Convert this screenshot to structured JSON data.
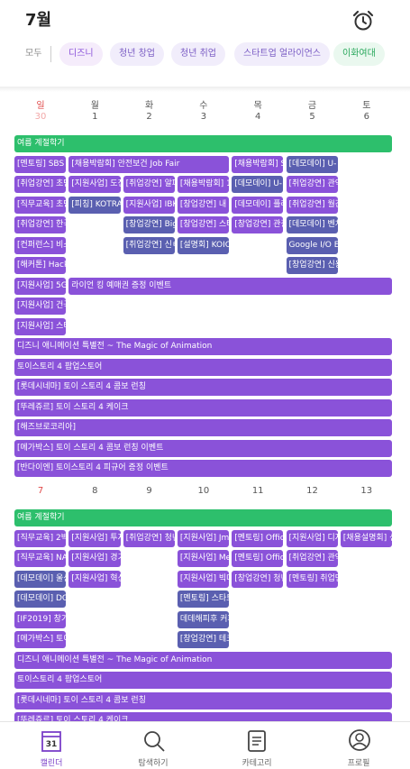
{
  "header": {
    "title": "7월"
  },
  "filters": [
    {
      "text": "모두",
      "color": "#888888",
      "bg": "#ffffff"
    },
    {
      "text": "디즈니",
      "color": "#8a52d9",
      "bg": "#f5ecfb"
    },
    {
      "text": "청년 창업",
      "color": "#7a5cc4",
      "bg": "#f1edfb"
    },
    {
      "text": "청년 취업",
      "color": "#7a5cc4",
      "bg": "#f1edfb"
    },
    {
      "text": "스타트업 얼라이언스",
      "color": "#7a5cc4",
      "bg": "#f1edfb"
    },
    {
      "text": "이화여대",
      "color": "#2aa85d",
      "bg": "#eaf8ef"
    }
  ],
  "weekdays": [
    "일",
    "월",
    "화",
    "수",
    "목",
    "금",
    "토"
  ],
  "weeks": [
    {
      "dates": [
        "30",
        "1",
        "2",
        "3",
        "4",
        "5",
        "6"
      ],
      "rows": [
        [
          {
            "text": "여름 계절학기",
            "day": 0,
            "days": 7,
            "color": "#2dbf6c"
          }
        ],
        [
          {
            "text": "[멘토링] SBS 1",
            "day": 0,
            "color": "#8a52d9"
          },
          {
            "text": "[채용박람회] 안전보건 Job Fair",
            "day": 1,
            "days": 3,
            "color": "#8a52d9"
          },
          {
            "text": "[채용박람회] S",
            "day": 4,
            "color": "#8a52d9"
          },
          {
            "text": "[데모데이] U-",
            "day": 5,
            "color": "#5a5fb0"
          }
        ],
        [
          {
            "text": "[취업강연] 초단",
            "day": 0,
            "color": "#8a52d9"
          },
          {
            "text": "[지원사업] 도전",
            "day": 1,
            "color": "#8a52d9"
          },
          {
            "text": "[취업강연] 알파",
            "day": 2,
            "color": "#8a52d9"
          },
          {
            "text": "[채용박람회] 1",
            "day": 3,
            "color": "#8a52d9"
          },
          {
            "text": "[데모데이] U-",
            "day": 4,
            "color": "#5a5fb0"
          },
          {
            "text": "[취업강연] 관악",
            "day": 5,
            "color": "#8a52d9"
          }
        ],
        [
          {
            "text": "[직무교육] 초민",
            "day": 0,
            "color": "#8a52d9"
          },
          {
            "text": "[피칭] KOTRA",
            "day": 1,
            "color": "#5a5fb0"
          },
          {
            "text": "[지원사업] IBK",
            "day": 2,
            "color": "#8a52d9"
          },
          {
            "text": "[창업강연] 내",
            "day": 3,
            "color": "#8a52d9"
          },
          {
            "text": "[데모데이] 플라",
            "day": 4,
            "color": "#8a52d9"
          },
          {
            "text": "[취업강연] 월간",
            "day": 5,
            "color": "#8a52d9"
          }
        ],
        [
          {
            "text": "[취업강연] 한국",
            "day": 0,
            "color": "#8a52d9"
          },
          {
            "text": "[창업강연] Big",
            "day": 2,
            "color": "#5a5fb0"
          },
          {
            "text": "[창업강연] 스타",
            "day": 3,
            "color": "#8a52d9"
          },
          {
            "text": "[창업강연] 관광",
            "day": 4,
            "color": "#8a52d9"
          },
          {
            "text": "[데모데이] 벤처",
            "day": 5,
            "color": "#5a5fb0"
          }
        ],
        [
          {
            "text": "[컨퍼런스] 비스",
            "day": 0,
            "color": "#8a52d9"
          },
          {
            "text": "[취업강연] 신ㅌ",
            "day": 2,
            "color": "#5a5fb0"
          },
          {
            "text": "[설명회] KOIC",
            "day": 3,
            "color": "#5a5fb0"
          },
          {
            "text": "Google I/O Ex",
            "day": 5,
            "color": "#5a5fb0"
          }
        ],
        [
          {
            "text": "[해커톤] Hack",
            "day": 0,
            "color": "#8a52d9"
          },
          {
            "text": "[창업강연] 신용",
            "day": 5,
            "color": "#5a5fb0"
          }
        ],
        [
          {
            "text": "[지원사업] 5G",
            "day": 0,
            "color": "#8a52d9"
          },
          {
            "text": "라이언 킹 예매권 증정 이벤트",
            "day": 1,
            "days": 6,
            "color": "#8a52d9"
          }
        ],
        [
          {
            "text": "[지원사업] 건국",
            "day": 0,
            "color": "#8a52d9"
          }
        ],
        [
          {
            "text": "[지원사업] 스타",
            "day": 0,
            "color": "#8a52d9"
          }
        ],
        [
          {
            "text": "디즈니 애니메이션 특별전 ~ The Magic of Animation",
            "day": 0,
            "days": 7,
            "color": "#8a52d9"
          }
        ],
        [
          {
            "text": "토이스토리 4 팝업스토어",
            "day": 0,
            "days": 7,
            "color": "#8a52d9"
          }
        ],
        [
          {
            "text": "[롯데시네마] 토이 스토리 4 콤보 런칭",
            "day": 0,
            "days": 7,
            "color": "#8a52d9"
          }
        ],
        [
          {
            "text": "[뚜레쥬르] 토이 스토리 4 케이크",
            "day": 0,
            "days": 7,
            "color": "#8a52d9"
          }
        ],
        [
          {
            "text": "[해즈브로코리아]",
            "day": 0,
            "days": 7,
            "color": "#8a52d9"
          }
        ],
        [
          {
            "text": "[메가박스] 토이 스토리 4 콤보 런칭 이벤트",
            "day": 0,
            "days": 7,
            "color": "#8a52d9"
          }
        ],
        [
          {
            "text": "[반다이엔] 토이스토리 4 피규어 증정 이벤트",
            "day": 0,
            "days": 7,
            "color": "#8a52d9"
          }
        ]
      ]
    },
    {
      "dates": [
        "7",
        "8",
        "9",
        "10",
        "11",
        "12",
        "13"
      ],
      "rows": [
        [
          {
            "text": "여름 계절학기",
            "day": 0,
            "days": 7,
            "color": "#2dbf6c"
          }
        ],
        [
          {
            "text": "[직무교육] 2박",
            "day": 0,
            "color": "#8a52d9"
          },
          {
            "text": "[지원사업] 투자",
            "day": 1,
            "color": "#8a52d9"
          },
          {
            "text": "[취업강연] 청년",
            "day": 2,
            "color": "#8a52d9"
          },
          {
            "text": "[지원사업] Jmi",
            "day": 3,
            "color": "#8a52d9"
          },
          {
            "text": "[멘토링] Offic",
            "day": 4,
            "color": "#8a52d9"
          },
          {
            "text": "[지원사업] 디자",
            "day": 5,
            "color": "#8a52d9"
          },
          {
            "text": "[채용설명회] 신",
            "day": 6,
            "color": "#8a52d9"
          }
        ],
        [
          {
            "text": "[직무교육] NAV",
            "day": 0,
            "color": "#8a52d9"
          },
          {
            "text": "[지원사업] 경기",
            "day": 1,
            "color": "#8a52d9"
          },
          {
            "text": "[지원사업] Mer",
            "day": 3,
            "color": "#8a52d9"
          },
          {
            "text": "[멘토링] Offic",
            "day": 4,
            "color": "#8a52d9"
          },
          {
            "text": "[취업강연] 관악",
            "day": 5,
            "color": "#8a52d9"
          }
        ],
        [
          {
            "text": "[데모데이] 울산",
            "day": 0,
            "color": "#5a5fb0"
          },
          {
            "text": "[지원사업] 혁신",
            "day": 1,
            "color": "#8a52d9"
          },
          {
            "text": "[지원사업] 빅데",
            "day": 3,
            "color": "#8a52d9"
          },
          {
            "text": "[창업강연] 청년",
            "day": 4,
            "color": "#8a52d9"
          },
          {
            "text": "[멘토링] 취업멘",
            "day": 5,
            "color": "#8a52d9"
          }
        ],
        [
          {
            "text": "[데모데이] DG",
            "day": 0,
            "color": "#5a5fb0"
          },
          {
            "text": "[멘토링] 스타트",
            "day": 3,
            "color": "#5a5fb0"
          }
        ],
        [
          {
            "text": "[IF2019] 창기",
            "day": 0,
            "color": "#8a52d9"
          },
          {
            "text": "데데해피후 커피",
            "day": 3,
            "color": "#5a5fb0"
          }
        ],
        [
          {
            "text": "[메가박스] 토이",
            "day": 0,
            "color": "#8a52d9"
          },
          {
            "text": "[창업강연] 테크",
            "day": 3,
            "color": "#5a5fb0"
          }
        ],
        [
          {
            "text": "디즈니 애니메이션 특별전 ~ The Magic of Animation",
            "day": 0,
            "days": 7,
            "color": "#8a52d9"
          }
        ],
        [
          {
            "text": "토이스토리 4 팝업스토어",
            "day": 0,
            "days": 7,
            "color": "#8a52d9"
          }
        ],
        [
          {
            "text": "[롯데시네마] 토이 스토리 4 콤보 런칭",
            "day": 0,
            "days": 7,
            "color": "#8a52d9"
          }
        ],
        [
          {
            "text": "[뚜레쥬르] 토이 스토리 4 케이크",
            "day": 0,
            "days": 7,
            "color": "#8a52d9"
          }
        ]
      ]
    }
  ],
  "nav": {
    "calendar_icon_day": "31",
    "items": [
      "캘린더",
      "탐색하기",
      "카테고리",
      "프로필"
    ]
  }
}
